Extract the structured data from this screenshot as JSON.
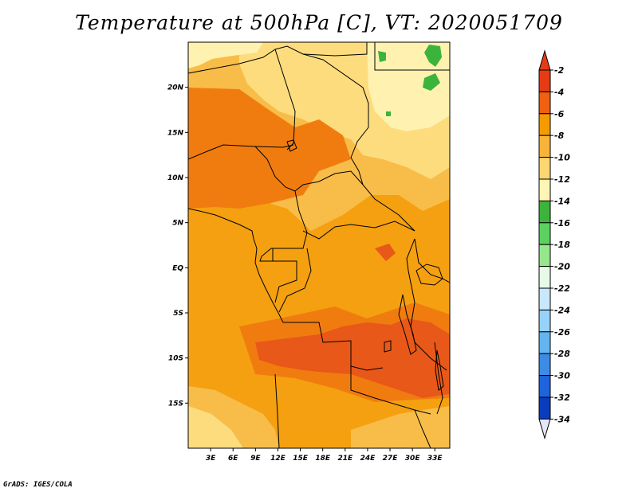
{
  "title": "Temperature at 500hPa [C], VT: 2020051709",
  "credit": "GrADS: IGES/COLA",
  "axes": {
    "lat_labels": [
      "20N",
      "15N",
      "10N",
      "5N",
      "EQ",
      "5S",
      "10S",
      "15S"
    ],
    "lat_values": [
      20,
      15,
      10,
      5,
      0,
      -5,
      -10,
      -15
    ],
    "lon_labels": [
      "3E",
      "6E",
      "9E",
      "12E",
      "15E",
      "18E",
      "21E",
      "24E",
      "27E",
      "30E",
      "33E"
    ],
    "lon_values": [
      3,
      6,
      9,
      12,
      15,
      18,
      21,
      24,
      27,
      30,
      33
    ],
    "lat_range": [
      -20,
      25
    ],
    "lon_range": [
      0,
      35
    ]
  },
  "colorbar": {
    "labels": [
      "-2",
      "-4",
      "-6",
      "-8",
      "-10",
      "-12",
      "-14",
      "-16",
      "-18",
      "-20",
      "-22",
      "-24",
      "-26",
      "-28",
      "-30",
      "-32",
      "-34"
    ],
    "colors": [
      "#e63c14",
      "#f06010",
      "#f59a00",
      "#f8b338",
      "#fcd670",
      "#fff5b4",
      "#3cb43c",
      "#5cd060",
      "#96e68c",
      "#e6fae6",
      "#c8e8ff",
      "#96d2fa",
      "#64b4f0",
      "#3c8ce6",
      "#1e64dc",
      "#0a3cbe",
      "#0a148c"
    ]
  },
  "colors": {
    "hot": "#e85818",
    "warm": "#f07c10",
    "mid": "#f4a010",
    "cool": "#f8bd48",
    "cooler": "#fddc7e",
    "coolest": "#fff2b0",
    "green": "#3cb43c",
    "border": "#000000"
  }
}
